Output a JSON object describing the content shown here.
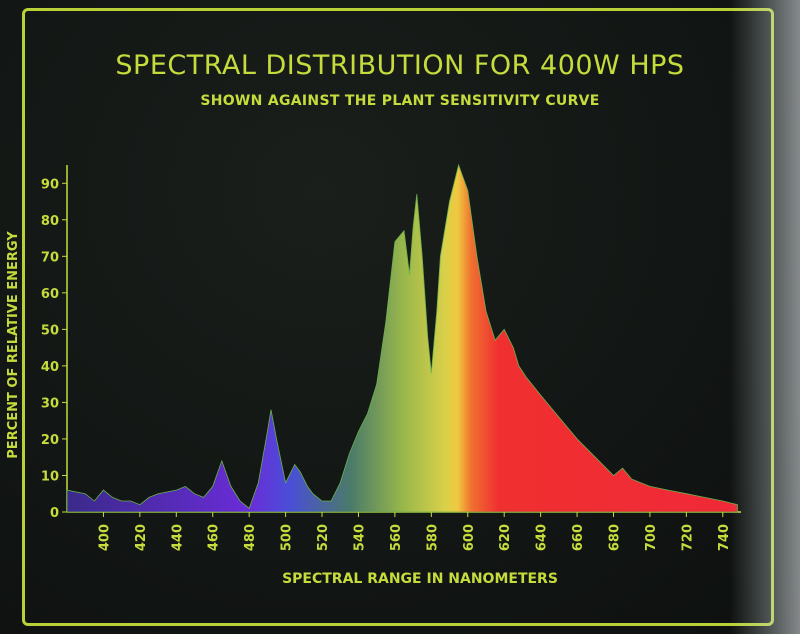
{
  "chart_data": {
    "type": "area",
    "title": "SPECTRAL DISTRIBUTION FOR 400W HPS",
    "subtitle": "SHOWN AGAINST THE PLANT SENSITIVITY CURVE",
    "xlabel": "SPECTRAL RANGE IN NANOMETERS",
    "ylabel": "PERCENT OF RELATIVE ENERGY",
    "xlim": [
      380,
      750
    ],
    "ylim": [
      0,
      95
    ],
    "x_ticks": [
      400,
      420,
      440,
      460,
      480,
      500,
      520,
      540,
      560,
      580,
      600,
      620,
      640,
      660,
      680,
      700,
      720,
      740
    ],
    "y_ticks": [
      0,
      10,
      20,
      30,
      40,
      50,
      60,
      70,
      80,
      90
    ],
    "grid": false,
    "series": [
      {
        "x": [
          380,
          390,
          395,
          400,
          405,
          410,
          415,
          420,
          425,
          430,
          440,
          445,
          450,
          455,
          460,
          465,
          470,
          475,
          480,
          485,
          490,
          492,
          495,
          500,
          505,
          508,
          512,
          515,
          520,
          525,
          530,
          535,
          540,
          545,
          550,
          555,
          560,
          565,
          568,
          570,
          572,
          575,
          578,
          580,
          583,
          585,
          590,
          595,
          600,
          605,
          610,
          615,
          620,
          625,
          628,
          632,
          640,
          650,
          660,
          670,
          680,
          685,
          690,
          700,
          710,
          720,
          730,
          740,
          748
        ],
        "values": [
          6,
          5,
          3,
          6,
          4,
          3,
          3,
          2,
          4,
          5,
          6,
          7,
          5,
          4,
          7,
          14,
          7,
          3,
          1,
          8,
          22,
          28,
          20,
          8,
          13,
          11,
          7,
          5,
          3,
          3,
          8,
          16,
          22,
          27,
          35,
          52,
          74,
          77,
          65,
          78,
          87,
          70,
          48,
          38,
          55,
          70,
          85,
          95,
          88,
          70,
          55,
          47,
          50,
          45,
          40,
          37,
          32,
          26,
          20,
          15,
          10,
          12,
          9,
          7,
          6,
          5,
          4,
          3,
          2
        ]
      }
    ]
  }
}
